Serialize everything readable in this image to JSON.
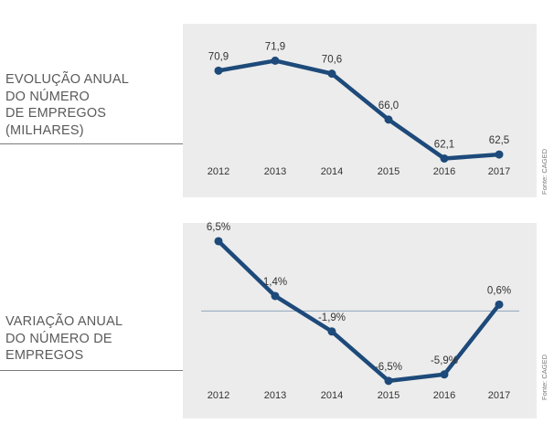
{
  "colors": {
    "line": "#1d4a7a",
    "panel": "#ececec",
    "zero_line": "#8fa6bd"
  },
  "source_label": "Fonte: CAGED",
  "chart_data": [
    {
      "type": "line",
      "title_lines": [
        "EVOLUÇÃO ANUAL",
        "DO NÚMERO",
        "DE EMPREGOS",
        "(MILHARES)"
      ],
      "categories": [
        "2012",
        "2013",
        "2014",
        "2015",
        "2016",
        "2017"
      ],
      "values": [
        70.9,
        71.9,
        70.6,
        66.0,
        62.1,
        62.5
      ],
      "labels": [
        "70,9",
        "71,9",
        "70,6",
        "66,0",
        "62,1",
        "62,5"
      ],
      "ylim": [
        58.3,
        75.6
      ],
      "grid": false
    },
    {
      "type": "line",
      "title_lines": [
        "VARIAÇÃO ANUAL",
        "DO NÚMERO DE",
        "EMPREGOS"
      ],
      "categories": [
        "2012",
        "2013",
        "2014",
        "2015",
        "2016",
        "2017"
      ],
      "values": [
        6.5,
        1.4,
        -1.9,
        -6.5,
        -5.9,
        0.6
      ],
      "labels": [
        "6,5%",
        "1,4%",
        "-1,9%",
        "-6,5%",
        "-5,9%",
        "0,6%"
      ],
      "ylim": [
        -10,
        8.2
      ],
      "zero_line": true,
      "grid": false
    }
  ]
}
